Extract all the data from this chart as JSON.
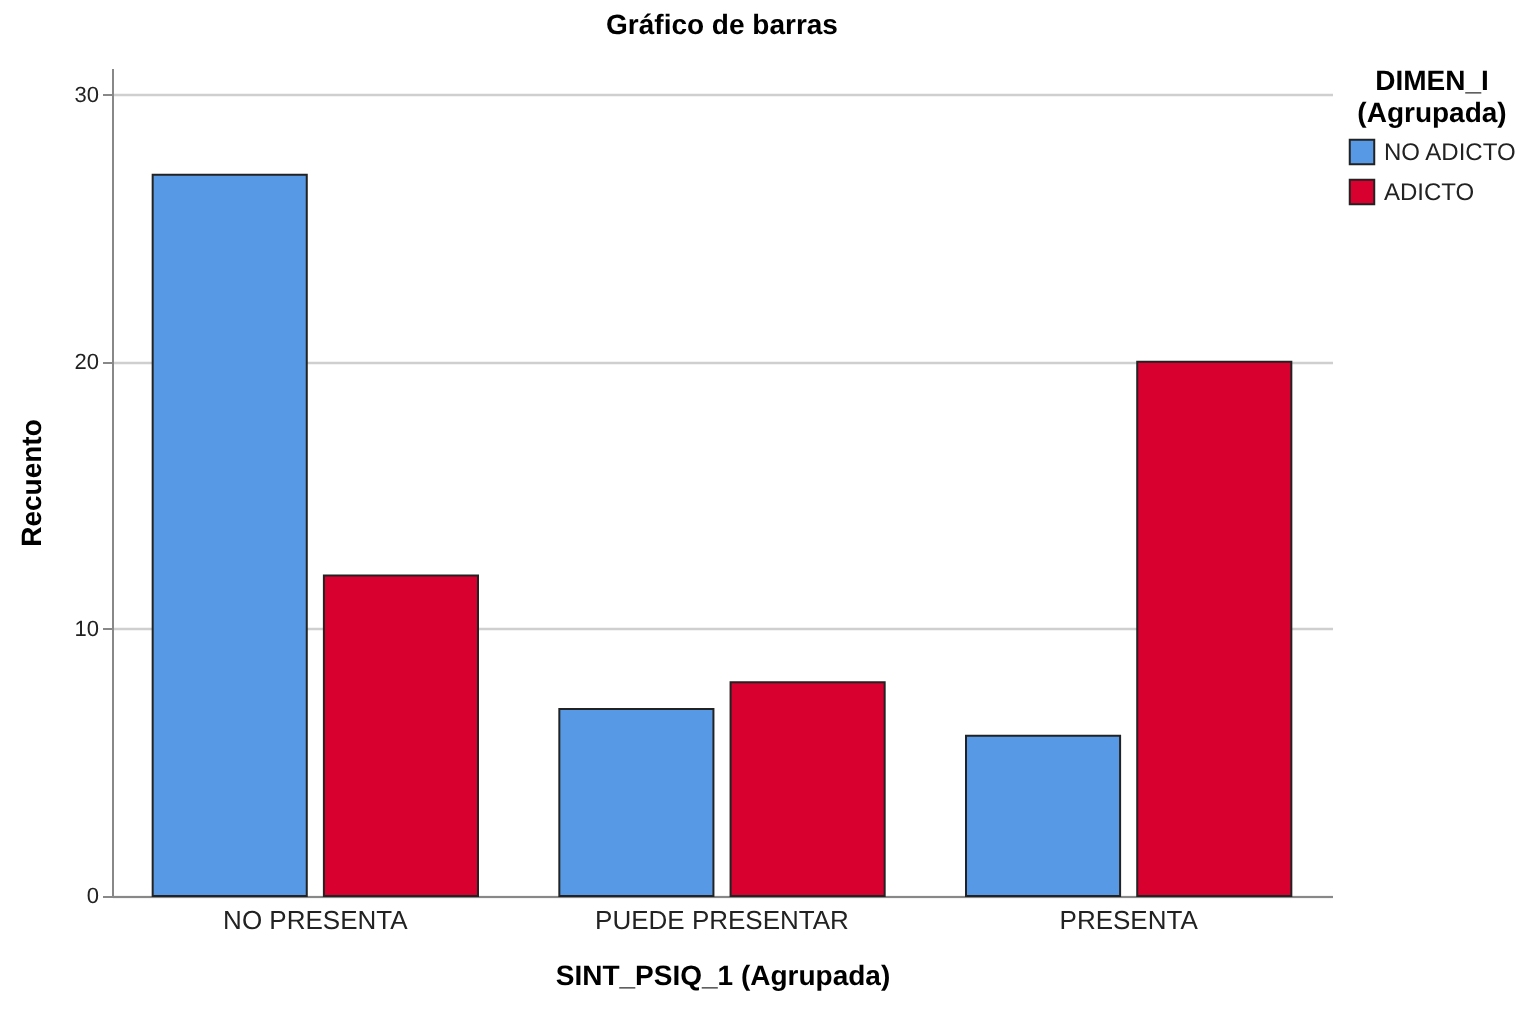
{
  "chart_data": {
    "type": "bar",
    "title": "Gráfico de barras",
    "xlabel": "SINT_PSIQ_1 (Agrupada)",
    "ylabel": "Recuento",
    "legend_title": "DIMEN_I (Agrupada)",
    "categories": [
      "NO PRESENTA",
      "PUEDE PRESENTAR",
      "PRESENTA"
    ],
    "series": [
      {
        "name": "NO ADICTO",
        "color": "#5799e5",
        "values": [
          27,
          7,
          6
        ]
      },
      {
        "name": "ADICTO",
        "color": "#d7002f",
        "values": [
          12,
          8,
          20
        ]
      }
    ],
    "ylim": [
      0,
      31
    ],
    "yticks": [
      0,
      10,
      20,
      30
    ],
    "grid": "y",
    "legend": "top right"
  }
}
